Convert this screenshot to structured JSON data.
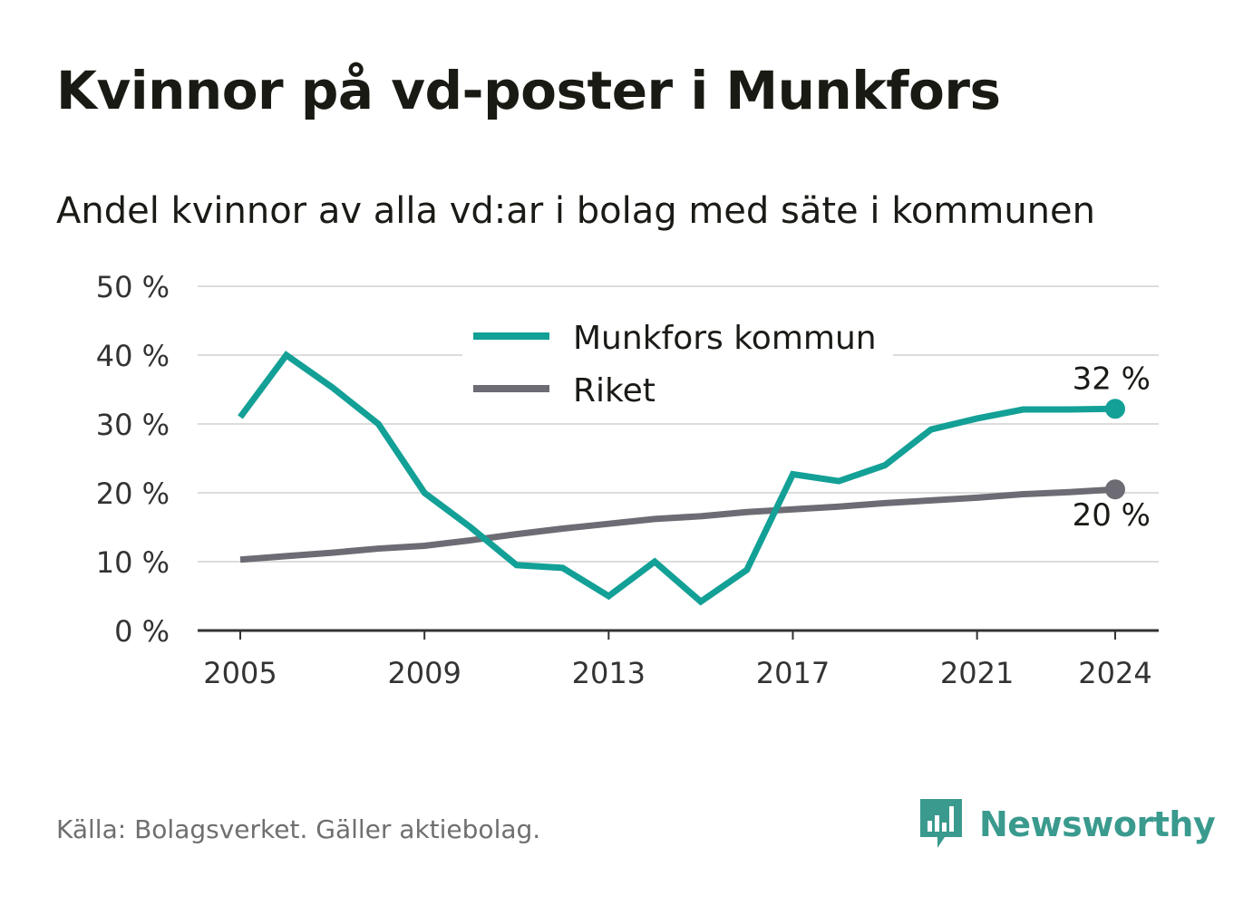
{
  "title": "Kvinnor på vd-poster i Munkfors",
  "subtitle": "Andel kvinnor av alla vd:ar i bolag med säte i kommunen",
  "source": "Källa: Bolagsverket. Gäller aktiebolag.",
  "brand": {
    "name": "Newsworthy",
    "icon": "bar-chart-icon",
    "color": "#3a9a8e"
  },
  "chart_data": {
    "type": "line",
    "title": "Kvinnor på vd-poster i Munkfors",
    "subtitle": "Andel kvinnor av alla vd:ar i bolag med säte i kommunen",
    "xlabel": "",
    "ylabel": "",
    "x": [
      2005,
      2006,
      2007,
      2008,
      2009,
      2010,
      2011,
      2012,
      2013,
      2014,
      2015,
      2016,
      2017,
      2018,
      2019,
      2020,
      2021,
      2022,
      2023,
      2024
    ],
    "x_ticks": [
      2005,
      2009,
      2013,
      2017,
      2021,
      2024
    ],
    "x_tick_labels": [
      "2005",
      "2009",
      "2013",
      "2017",
      "2021",
      "2024"
    ],
    "ylim": [
      0,
      50
    ],
    "y_ticks": [
      0,
      10,
      20,
      30,
      40,
      50
    ],
    "y_tick_labels": [
      "0 %",
      "10 %",
      "20 %",
      "30 %",
      "40 %",
      "50 %"
    ],
    "grid": true,
    "legend": "top-center",
    "series": [
      {
        "name": "Munkfors kommun",
        "color": "#13a096",
        "values": [
          31,
          40,
          35.3,
          30,
          20,
          15,
          9.5,
          9.1,
          5,
          10,
          4.2,
          8.8,
          22.7,
          21.7,
          24,
          29.2,
          30.8,
          32.1,
          32.1,
          32.2
        ],
        "end_label": "32 %"
      },
      {
        "name": "Riket",
        "color": "#6d6b73",
        "values": [
          10.3,
          10.8,
          11.3,
          11.9,
          12.3,
          13.1,
          14,
          14.8,
          15.5,
          16.2,
          16.6,
          17.2,
          17.6,
          18,
          18.5,
          18.9,
          19.3,
          19.8,
          20.1,
          20.5
        ],
        "end_label": "20 %"
      }
    ]
  }
}
